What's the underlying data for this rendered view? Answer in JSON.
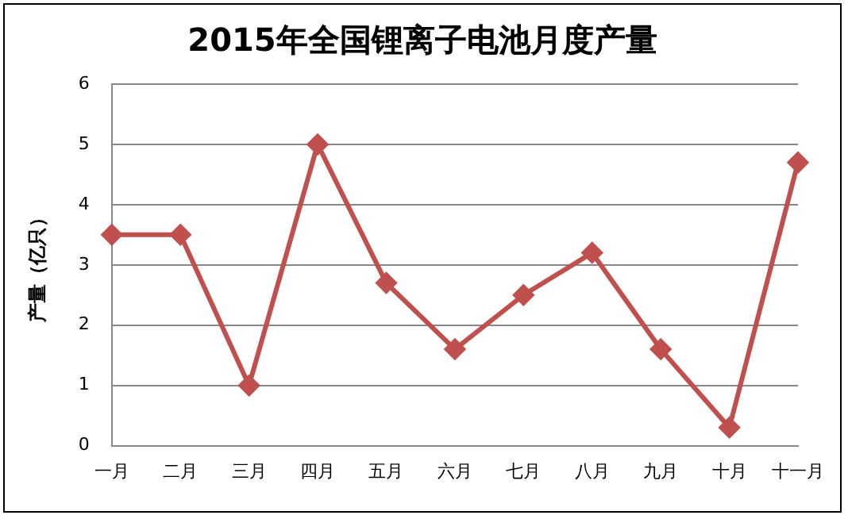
{
  "chart_data": {
    "type": "line",
    "title": "2015年全国锂离子电池月度产量",
    "ylabel": "产量（亿只）",
    "categories": [
      "一月",
      "二月",
      "三月",
      "四月",
      "五月",
      "六月",
      "七月",
      "八月",
      "九月",
      "十月",
      "十一月"
    ],
    "series": [
      {
        "color": "#c0504d",
        "values": [
          3.5,
          3.5,
          1.0,
          5.0,
          2.7,
          1.6,
          2.5,
          3.2,
          1.6,
          0.3,
          4.7
        ]
      }
    ],
    "ylim": [
      0,
      6
    ],
    "yticks": [
      0,
      1,
      2,
      3,
      4,
      5,
      6
    ],
    "grid": "y",
    "legend": false,
    "marker": "diamond",
    "line_style": "solid"
  }
}
